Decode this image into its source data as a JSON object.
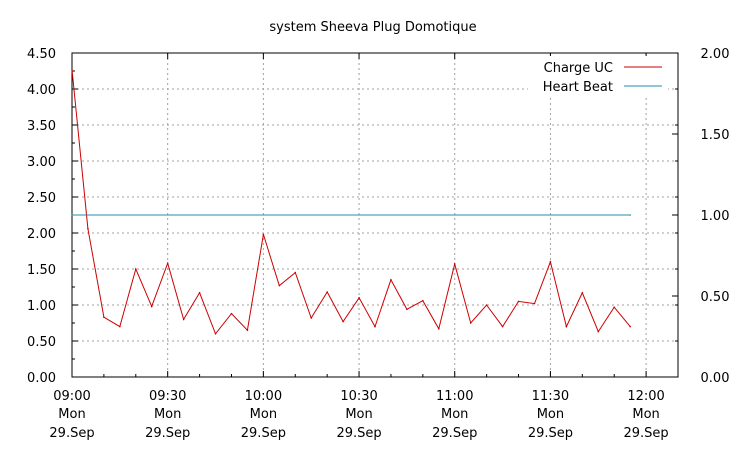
{
  "chart_data": {
    "type": "line",
    "title": "system Sheeva Plug Domotique",
    "xlabel": "",
    "ylabel": "",
    "x_ticks": [
      {
        "minutes": 0,
        "time": "09:00",
        "day": "Mon",
        "date": "29.Sep"
      },
      {
        "minutes": 30,
        "time": "09:30",
        "day": "Mon",
        "date": "29.Sep"
      },
      {
        "minutes": 60,
        "time": "10:00",
        "day": "Mon",
        "date": "29.Sep"
      },
      {
        "minutes": 90,
        "time": "10:30",
        "day": "Mon",
        "date": "29.Sep"
      },
      {
        "minutes": 120,
        "time": "11:00",
        "day": "Mon",
        "date": "29.Sep"
      },
      {
        "minutes": 150,
        "time": "11:30",
        "day": "Mon",
        "date": "29.Sep"
      },
      {
        "minutes": 180,
        "time": "12:00",
        "day": "Mon",
        "date": "29.Sep"
      }
    ],
    "xlim": [
      0,
      190
    ],
    "y_left": {
      "lim": [
        0,
        4.5
      ],
      "ticks": [
        "0.00",
        "0.50",
        "1.00",
        "1.50",
        "2.00",
        "2.50",
        "3.00",
        "3.50",
        "4.00",
        "4.50"
      ]
    },
    "y_right": {
      "lim": [
        0,
        2.0
      ],
      "ticks": [
        "0.00",
        "0.50",
        "1.00",
        "1.50",
        "2.00"
      ]
    },
    "grid": true,
    "legend": "top-right",
    "series": [
      {
        "name": "Charge UC",
        "color": "#cc0000",
        "axis": "left",
        "x": [
          0,
          5,
          10,
          15,
          20,
          25,
          30,
          35,
          40,
          45,
          50,
          55,
          60,
          65,
          70,
          75,
          80,
          85,
          90,
          95,
          100,
          105,
          110,
          115,
          120,
          125,
          130,
          135,
          140,
          145,
          150,
          155,
          160,
          165,
          170,
          175
        ],
        "y": [
          4.27,
          2.06,
          0.83,
          0.7,
          1.5,
          0.98,
          1.58,
          0.8,
          1.17,
          0.6,
          0.88,
          0.65,
          1.98,
          1.27,
          1.45,
          0.82,
          1.18,
          0.77,
          1.1,
          0.7,
          1.35,
          0.94,
          1.06,
          0.67,
          1.57,
          0.75,
          1.0,
          0.7,
          1.05,
          1.02,
          1.6,
          0.7,
          1.17,
          0.63,
          0.97,
          0.7
        ]
      },
      {
        "name": "Heart Beat",
        "color": "#1f8fa8",
        "axis": "right",
        "x": [
          0,
          175
        ],
        "y": [
          1.0,
          1.0
        ]
      }
    ]
  }
}
